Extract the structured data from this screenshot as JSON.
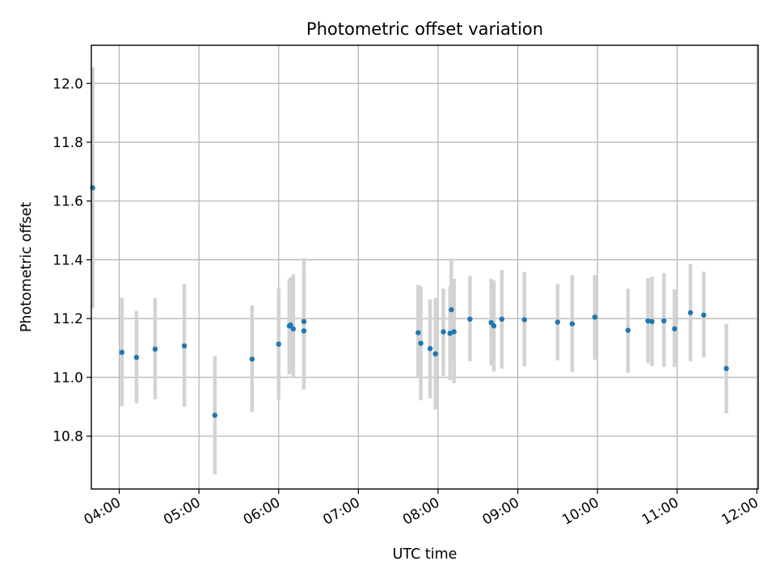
{
  "chart_data": {
    "type": "scatter",
    "title": "Photometric offset variation",
    "xlabel": "UTC time",
    "ylabel": "Photometric offset",
    "xlim": [
      "03:39",
      "12:01"
    ],
    "ylim": [
      10.62,
      12.13
    ],
    "x_ticks": [
      "04:00",
      "05:00",
      "06:00",
      "07:00",
      "08:00",
      "09:00",
      "10:00",
      "11:00",
      "12:00"
    ],
    "y_ticks": [
      10.8,
      11.0,
      11.2,
      11.4,
      11.6,
      11.8,
      12.0
    ],
    "grid": true,
    "colors": {
      "points": "#1f77b4",
      "errorbars": "#d3d3d3",
      "grid": "#b0b0b0"
    },
    "points": [
      {
        "x": "03:40",
        "y": 11.645,
        "lo": 11.235,
        "hi": 12.055
      },
      {
        "x": "04:02",
        "y": 11.085,
        "lo": 10.902,
        "hi": 11.27
      },
      {
        "x": "04:13",
        "y": 11.068,
        "lo": 10.912,
        "hi": 11.226
      },
      {
        "x": "04:27",
        "y": 11.096,
        "lo": 10.925,
        "hi": 11.27
      },
      {
        "x": "04:49",
        "y": 11.107,
        "lo": 10.9,
        "hi": 11.318
      },
      {
        "x": "05:12",
        "y": 10.871,
        "lo": 10.67,
        "hi": 11.072
      },
      {
        "x": "05:40",
        "y": 11.062,
        "lo": 10.882,
        "hi": 11.245
      },
      {
        "x": "06:00",
        "y": 11.113,
        "lo": 10.925,
        "hi": 11.302
      },
      {
        "x": "06:08",
        "y": 11.175,
        "lo": 11.01,
        "hi": 11.335
      },
      {
        "x": "06:09",
        "y": 11.178,
        "lo": 11.02,
        "hi": 11.34
      },
      {
        "x": "06:11",
        "y": 11.165,
        "lo": 11.0,
        "hi": 11.35
      },
      {
        "x": "06:19",
        "y": 11.19,
        "lo": 11.0,
        "hi": 11.405
      },
      {
        "x": "06:19",
        "y": 11.158,
        "lo": 10.958,
        "hi": 11.36
      },
      {
        "x": "07:45",
        "y": 11.152,
        "lo": 11.0,
        "hi": 11.315
      },
      {
        "x": "07:47",
        "y": 11.116,
        "lo": 10.922,
        "hi": 11.31
      },
      {
        "x": "07:54",
        "y": 11.098,
        "lo": 10.928,
        "hi": 11.265
      },
      {
        "x": "07:58",
        "y": 11.08,
        "lo": 10.89,
        "hi": 11.27
      },
      {
        "x": "08:04",
        "y": 11.155,
        "lo": 11.005,
        "hi": 11.302
      },
      {
        "x": "08:09",
        "y": 11.15,
        "lo": 10.99,
        "hi": 11.31
      },
      {
        "x": "08:10",
        "y": 11.23,
        "lo": 11.055,
        "hi": 11.405
      },
      {
        "x": "08:12",
        "y": 11.155,
        "lo": 10.98,
        "hi": 11.335
      },
      {
        "x": "08:24",
        "y": 11.198,
        "lo": 11.055,
        "hi": 11.345
      },
      {
        "x": "08:40",
        "y": 11.186,
        "lo": 11.04,
        "hi": 11.335
      },
      {
        "x": "08:42",
        "y": 11.175,
        "lo": 11.02,
        "hi": 11.33
      },
      {
        "x": "08:48",
        "y": 11.198,
        "lo": 11.03,
        "hi": 11.365
      },
      {
        "x": "09:05",
        "y": 11.196,
        "lo": 11.037,
        "hi": 11.358
      },
      {
        "x": "09:30",
        "y": 11.188,
        "lo": 11.058,
        "hi": 11.318
      },
      {
        "x": "09:41",
        "y": 11.182,
        "lo": 11.018,
        "hi": 11.348
      },
      {
        "x": "09:58",
        "y": 11.205,
        "lo": 11.06,
        "hi": 11.348
      },
      {
        "x": "10:23",
        "y": 11.16,
        "lo": 11.015,
        "hi": 11.302
      },
      {
        "x": "10:38",
        "y": 11.192,
        "lo": 11.048,
        "hi": 11.338
      },
      {
        "x": "10:41",
        "y": 11.19,
        "lo": 11.038,
        "hi": 11.342
      },
      {
        "x": "10:50",
        "y": 11.192,
        "lo": 11.035,
        "hi": 11.355
      },
      {
        "x": "10:58",
        "y": 11.165,
        "lo": 11.035,
        "hi": 11.3
      },
      {
        "x": "11:10",
        "y": 11.22,
        "lo": 11.055,
        "hi": 11.385
      },
      {
        "x": "11:20",
        "y": 11.212,
        "lo": 11.068,
        "hi": 11.36
      },
      {
        "x": "11:37",
        "y": 11.03,
        "lo": 10.878,
        "hi": 11.182
      }
    ]
  }
}
